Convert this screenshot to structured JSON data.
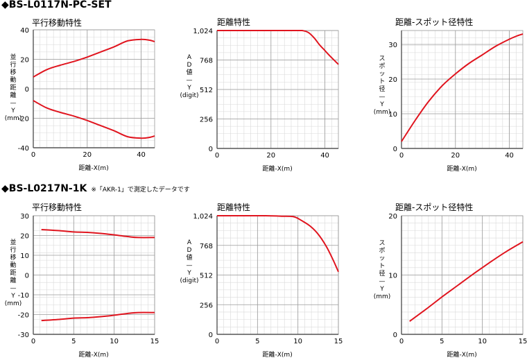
{
  "sections": [
    {
      "title": "◆BS-L0117N-PC-SET",
      "note": ""
    },
    {
      "title": "◆BS-L0217N-1K",
      "note": "※「AKR-1」で測定したデータです"
    }
  ],
  "colors": {
    "curve": "#e0141e",
    "grid_minor": "#d9d9d9",
    "grid_major": "#9a9a9a",
    "axis": "#555555"
  },
  "chart_data": [
    {
      "type": "line",
      "title": "平行移動特性",
      "xlabel": "距離-X(m)",
      "ylabel": "並行移動距離—Y(mm)",
      "xlim": [
        0,
        45
      ],
      "ylim": [
        -40,
        40
      ],
      "xticks": [
        0,
        20,
        40
      ],
      "yticks": [
        -40,
        -20,
        0,
        20,
        40
      ],
      "ytick_labels": [
        "-40",
        "-20",
        "0",
        "20",
        "40"
      ],
      "series": [
        {
          "x": [
            0,
            5,
            10,
            15,
            20,
            25,
            30,
            35,
            40,
            43,
            45
          ],
          "y": [
            8,
            13,
            16,
            18.5,
            21.5,
            25,
            28.5,
            32.5,
            33.5,
            33,
            32
          ]
        },
        {
          "x": [
            0,
            5,
            10,
            15,
            20,
            25,
            30,
            35,
            40,
            43,
            45
          ],
          "y": [
            -8,
            -13,
            -16,
            -18.5,
            -21.5,
            -25,
            -28.5,
            -32.5,
            -33.5,
            -33,
            -32
          ]
        }
      ]
    },
    {
      "type": "line",
      "title": "距離特性",
      "xlabel": "距離-X(m)",
      "ylabel": "AD値—Y(digit)",
      "xlim": [
        0,
        45
      ],
      "ylim": [
        0,
        1024
      ],
      "xticks": [
        0,
        20,
        40
      ],
      "yticks": [
        0,
        256,
        512,
        768,
        1024
      ],
      "ytick_labels": [
        "0",
        "256",
        "512",
        "768",
        "1,024"
      ],
      "series": [
        {
          "x": [
            0,
            10,
            20,
            30,
            32,
            34,
            36,
            38,
            40,
            42,
            45
          ],
          "y": [
            1024,
            1024,
            1024,
            1024,
            1022,
            1005,
            960,
            900,
            850,
            800,
            730
          ]
        }
      ]
    },
    {
      "type": "line",
      "title": "距離-スポット径特性",
      "xlabel": "距離-X(m)",
      "ylabel": "スポット径—Y(mm)",
      "xlim": [
        0,
        45
      ],
      "ylim": [
        0,
        34
      ],
      "xticks": [
        0,
        20,
        40
      ],
      "yticks": [
        0,
        10,
        20,
        30
      ],
      "ytick_labels": [
        "0",
        "10",
        "20",
        "30"
      ],
      "series": [
        {
          "x": [
            0,
            5,
            10,
            15,
            20,
            25,
            30,
            35,
            40,
            43,
            45
          ],
          "y": [
            2,
            8,
            13.5,
            18,
            21.5,
            24.5,
            27,
            29.5,
            31.5,
            32.5,
            33
          ]
        }
      ]
    },
    {
      "type": "line",
      "title": "平行移動特性",
      "xlabel": "距離-X(m)",
      "ylabel": "並行移動距離—Y(mm)",
      "xlim": [
        0,
        15
      ],
      "ylim": [
        -30,
        30
      ],
      "xticks": [
        0,
        5,
        10,
        15
      ],
      "yticks": [
        -30,
        -20,
        -10,
        0,
        10,
        20,
        30
      ],
      "ytick_labels": [
        "-30",
        "-20",
        "-10",
        "0",
        "10",
        "20",
        "30"
      ],
      "series": [
        {
          "x": [
            1,
            3,
            5,
            7,
            9,
            11,
            12,
            13,
            15
          ],
          "y": [
            23,
            22.5,
            21.8,
            21.5,
            20.8,
            19.8,
            19.3,
            19,
            19
          ]
        },
        {
          "x": [
            1,
            3,
            5,
            7,
            9,
            11,
            12,
            13,
            15
          ],
          "y": [
            -23,
            -22.5,
            -21.8,
            -21.5,
            -20.8,
            -19.8,
            -19.3,
            -19,
            -19
          ]
        }
      ]
    },
    {
      "type": "line",
      "title": "距離特性",
      "xlabel": "距離-X(m)",
      "ylabel": "AD値—Y(digit)",
      "xlim": [
        0,
        15
      ],
      "ylim": [
        0,
        1024
      ],
      "xticks": [
        0,
        5,
        10,
        15
      ],
      "yticks": [
        0,
        256,
        512,
        768,
        1024
      ],
      "ytick_labels": [
        "0",
        "256",
        "512",
        "768",
        "1,024"
      ],
      "series": [
        {
          "x": [
            0,
            3,
            6,
            8,
            9.5,
            10.5,
            11.5,
            12.5,
            13.5,
            14.3,
            15
          ],
          "y": [
            1024,
            1024,
            1024,
            1020,
            1015,
            980,
            935,
            865,
            760,
            650,
            540
          ]
        }
      ]
    },
    {
      "type": "line",
      "title": "距離-スポット径特性",
      "xlabel": "距離-X(m)",
      "ylabel": "スポット径—Y(mm)",
      "xlim": [
        0,
        15
      ],
      "ylim": [
        0,
        20
      ],
      "xticks": [
        0,
        5,
        10,
        15
      ],
      "yticks": [
        0,
        10,
        20
      ],
      "ytick_labels": [
        "0",
        "10",
        "20"
      ],
      "series": [
        {
          "x": [
            1,
            3,
            5,
            7,
            9,
            11,
            13,
            15
          ],
          "y": [
            2.2,
            4.2,
            6.3,
            8.3,
            10.3,
            12.2,
            14,
            15.6
          ]
        }
      ]
    }
  ]
}
